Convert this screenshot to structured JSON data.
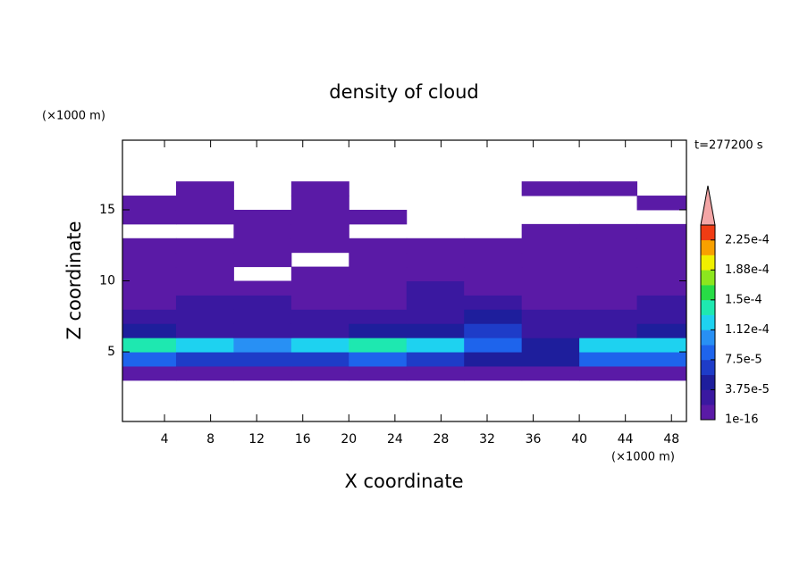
{
  "chart_data": {
    "type": "contour",
    "title": "density of cloud",
    "subtitle": "t=277200 s",
    "x_label": "X coordinate",
    "y_label": "Z coordinate",
    "x_unit": "(×1000 m)",
    "y_unit": "(×1000 m)",
    "xlim": [
      0.35,
      49.3
    ],
    "ylim": [
      0.1,
      19.9
    ],
    "xticks": [
      4,
      8,
      12,
      16,
      20,
      24,
      28,
      32,
      36,
      40,
      44,
      48
    ],
    "yticks": [
      5,
      10,
      15
    ],
    "xbins": [
      0.35,
      5,
      10,
      15,
      20,
      25,
      30,
      35,
      40,
      45,
      49.3
    ],
    "zbins": [
      3,
      4,
      5,
      6,
      7,
      8,
      9,
      10,
      11,
      12,
      13,
      14,
      15,
      16,
      17
    ],
    "values": [
      [
        1e-05,
        1e-05,
        1e-05,
        1e-05,
        1e-05,
        1e-05,
        1e-05,
        1e-05,
        1e-05,
        1e-05
      ],
      [
        9e-05,
        7e-05,
        6e-05,
        7e-05,
        8e-05,
        7e-05,
        5e-05,
        4e-05,
        8e-05,
        9e-05
      ],
      [
        0.00014,
        0.00012,
        0.0001,
        0.00012,
        0.00014,
        0.00013,
        8e-05,
        5e-05,
        0.00013,
        0.00012
      ],
      [
        4e-05,
        3e-05,
        3e-05,
        3e-05,
        4e-05,
        4e-05,
        6e-05,
        3e-05,
        3e-05,
        4e-05
      ],
      [
        2e-05,
        3e-05,
        2e-05,
        2e-05,
        2e-05,
        2e-05,
        4e-05,
        2e-05,
        2e-05,
        2e-05
      ],
      [
        1e-05,
        2e-05,
        2e-05,
        1e-05,
        1e-05,
        2e-05,
        2e-05,
        1e-05,
        1e-05,
        2e-05
      ],
      [
        1e-05,
        1e-05,
        1e-05,
        1e-05,
        1e-05,
        2e-05,
        1e-05,
        1e-05,
        1e-05,
        1e-05
      ],
      [
        5e-06,
        5e-06,
        null,
        5e-06,
        1e-05,
        5e-06,
        1e-05,
        5e-06,
        5e-06,
        1e-05
      ],
      [
        5e-06,
        5e-06,
        5e-06,
        null,
        5e-06,
        5e-06,
        5e-06,
        5e-06,
        5e-06,
        5e-06
      ],
      [
        5e-06,
        5e-06,
        5e-06,
        5e-06,
        5e-06,
        5e-06,
        5e-06,
        5e-06,
        5e-06,
        5e-06
      ],
      [
        null,
        null,
        5e-06,
        5e-06,
        null,
        null,
        null,
        5e-06,
        5e-06,
        5e-06
      ],
      [
        5e-06,
        5e-06,
        5e-06,
        5e-06,
        5e-06,
        null,
        null,
        null,
        null,
        null
      ],
      [
        5e-06,
        5e-06,
        null,
        5e-06,
        null,
        null,
        null,
        null,
        null,
        5e-06
      ],
      [
        null,
        5e-06,
        null,
        5e-06,
        null,
        null,
        null,
        5e-06,
        5e-06,
        null
      ]
    ],
    "colorbar": {
      "lim": [
        1e-16,
        0.00024375
      ],
      "ticks": [
        {
          "value": 1e-16,
          "label": "1e-16"
        },
        {
          "value": 3.75e-05,
          "label": "3.75e-5"
        },
        {
          "value": 7.5e-05,
          "label": "7.5e-5"
        },
        {
          "value": 0.0001125,
          "label": "1.12e-4"
        },
        {
          "value": 0.00015,
          "label": "1.5e-4"
        },
        {
          "value": 0.0001875,
          "label": "1.88e-4"
        },
        {
          "value": 0.000225,
          "label": "2.25e-4"
        }
      ],
      "colors": [
        "#5a1aa6",
        "#3a18a0",
        "#1e1e9c",
        "#1e3cc8",
        "#1e64ec",
        "#2890f4",
        "#1ed2f0",
        "#1ee8b0",
        "#28dc46",
        "#8ce61e",
        "#f0f000",
        "#f8a000",
        "#f03c14"
      ],
      "extend_color": "#f4a6a6"
    }
  }
}
